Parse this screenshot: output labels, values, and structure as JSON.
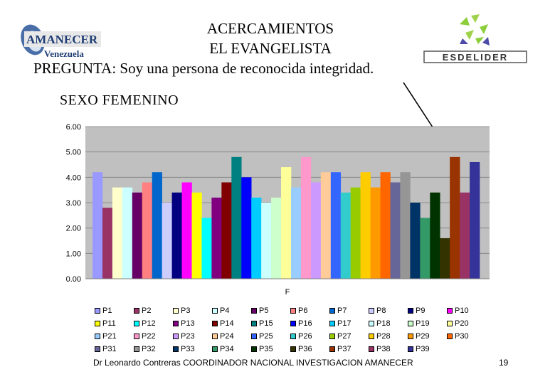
{
  "header": {
    "title_line1": "ACERCAMIENTOS",
    "title_line2": "EL EVANGELISTA",
    "question": "PREGUNTA: Soy una persona de reconocida integridad.",
    "subtitle": "SEXO FEMENINO"
  },
  "logos": {
    "left_main": "AMANECER",
    "left_sub": "Venezuela",
    "right_text": "ESDELIDER"
  },
  "chart_data": {
    "type": "bar",
    "categories": [
      "F"
    ],
    "xlabel": "F",
    "ylabel": "",
    "ylim": [
      0,
      6
    ],
    "yticks": [
      "0.00",
      "1.00",
      "2.00",
      "3.00",
      "4.00",
      "5.00",
      "6.00"
    ],
    "grid": true,
    "legend_position": "bottom",
    "series": [
      {
        "name": "P1",
        "value": 4.2,
        "color": "#9999ff"
      },
      {
        "name": "P2",
        "value": 2.8,
        "color": "#993366"
      },
      {
        "name": "P3",
        "value": 3.6,
        "color": "#ffffcc"
      },
      {
        "name": "P4",
        "value": 3.6,
        "color": "#ccffff"
      },
      {
        "name": "P5",
        "value": 3.4,
        "color": "#660066"
      },
      {
        "name": "P6",
        "value": 3.8,
        "color": "#ff8080"
      },
      {
        "name": "P7",
        "value": 4.2,
        "color": "#0066cc"
      },
      {
        "name": "P8",
        "value": 3.0,
        "color": "#ccccff"
      },
      {
        "name": "P9",
        "value": 3.4,
        "color": "#000080"
      },
      {
        "name": "P10",
        "value": 3.8,
        "color": "#ff00ff"
      },
      {
        "name": "P11",
        "value": 3.4,
        "color": "#ffff00"
      },
      {
        "name": "P12",
        "value": 2.4,
        "color": "#00ffff"
      },
      {
        "name": "P13",
        "value": 3.2,
        "color": "#800080"
      },
      {
        "name": "P14",
        "value": 3.8,
        "color": "#800000"
      },
      {
        "name": "P15",
        "value": 4.8,
        "color": "#008080"
      },
      {
        "name": "P16",
        "value": 4.0,
        "color": "#0000ff"
      },
      {
        "name": "P17",
        "value": 3.2,
        "color": "#00ccff"
      },
      {
        "name": "P18",
        "value": 3.0,
        "color": "#ccffff"
      },
      {
        "name": "P19",
        "value": 3.2,
        "color": "#ccffcc"
      },
      {
        "name": "P20",
        "value": 4.4,
        "color": "#ffff99"
      },
      {
        "name": "P21",
        "value": 3.6,
        "color": "#99ccff"
      },
      {
        "name": "P22",
        "value": 4.8,
        "color": "#ff99cc"
      },
      {
        "name": "P23",
        "value": 3.8,
        "color": "#cc99ff"
      },
      {
        "name": "P24",
        "value": 4.2,
        "color": "#ffcc99"
      },
      {
        "name": "P25",
        "value": 4.2,
        "color": "#3366ff"
      },
      {
        "name": "P26",
        "value": 3.4,
        "color": "#33cccc"
      },
      {
        "name": "P27",
        "value": 3.6,
        "color": "#99cc00"
      },
      {
        "name": "P28",
        "value": 4.2,
        "color": "#ffcc00"
      },
      {
        "name": "P29",
        "value": 3.6,
        "color": "#ff9900"
      },
      {
        "name": "P30",
        "value": 4.2,
        "color": "#ff6600"
      },
      {
        "name": "P31",
        "value": 3.8,
        "color": "#666699"
      },
      {
        "name": "P32",
        "value": 4.2,
        "color": "#969696"
      },
      {
        "name": "P33",
        "value": 3.0,
        "color": "#003366"
      },
      {
        "name": "P34",
        "value": 2.4,
        "color": "#339966"
      },
      {
        "name": "P35",
        "value": 3.4,
        "color": "#003300"
      },
      {
        "name": "P36",
        "value": 1.6,
        "color": "#333300"
      },
      {
        "name": "P37",
        "value": 4.8,
        "color": "#993300"
      },
      {
        "name": "P38",
        "value": 3.4,
        "color": "#993366"
      },
      {
        "name": "P39",
        "value": 4.6,
        "color": "#333399"
      }
    ]
  },
  "footer": {
    "text": "Dr Leonardo Contreras   COORDINADOR NACIONAL INVESTIGACION AMANECER",
    "page": "19"
  }
}
